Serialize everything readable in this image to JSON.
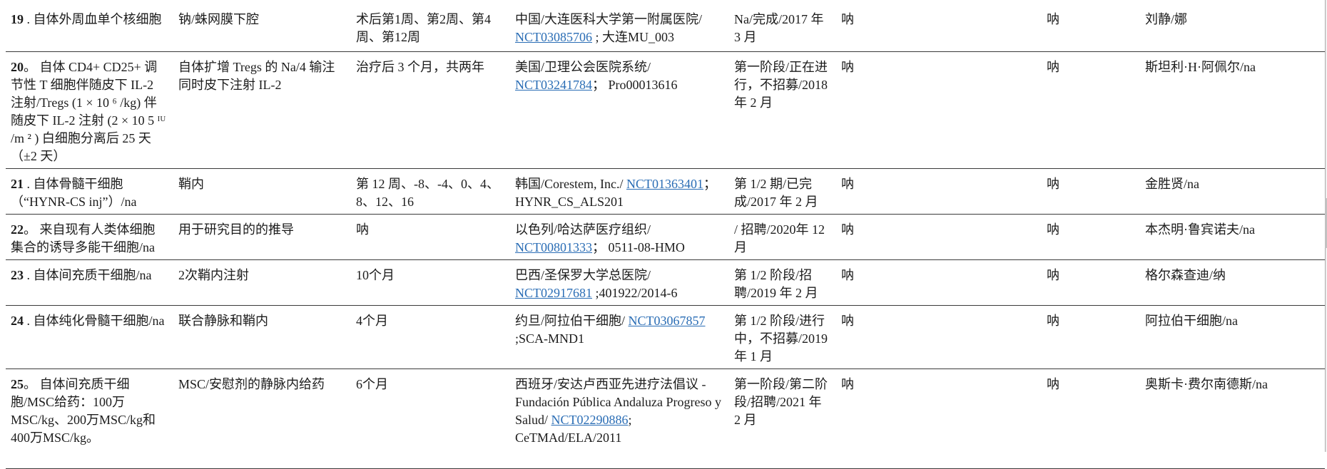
{
  "colors": {
    "link": "#2a6db5",
    "text": "#1c1c1c",
    "row_border": "#3a3a3a"
  },
  "table": {
    "rows": [
      {
        "cells": [
          {
            "num": "19",
            "rest": " . 自体外周血单个核细胞"
          },
          {
            "text": "钠/蛛网膜下腔"
          },
          {
            "text": "术后第1周、第2周、第4周、第12周"
          },
          {
            "segments": [
              {
                "text": "中国/大连医科大学第一附属医院/ "
              },
              {
                "link": "NCT03085706"
              },
              {
                "text": " ; 大连MU_003"
              }
            ]
          },
          {
            "text": "Na/完成/2017 年 3 月"
          },
          {
            "text": "呐"
          },
          {
            "text": "呐"
          },
          {
            "text": "刘静/娜"
          }
        ]
      },
      {
        "cells": [
          {
            "num": "20",
            "rest": "。 自体 CD4+ CD25+ 调节性 T 细胞伴随皮下 IL-2 注射/Tregs (1 × 10 ⁶ /kg) 伴随皮下 IL-2 注射 (2 × 10 5 ᴵᵁ /m ² ) 白细胞分离后 25 天（±2 天）"
          },
          {
            "text": "自体扩增 Tregs 的 Na/4 输注同时皮下注射 IL-2"
          },
          {
            "text": "治疗后 3 个月，共两年"
          },
          {
            "segments": [
              {
                "text": "美国/卫理公会医院系统/ "
              },
              {
                "link": "NCT03241784"
              },
              {
                "text": "； Pro00013616"
              }
            ]
          },
          {
            "text": "第一阶段/正在进行，不招募/2018 年 2 月"
          },
          {
            "text": "呐"
          },
          {
            "text": "呐"
          },
          {
            "text": "斯坦利·H·阿佩尔/na"
          }
        ]
      },
      {
        "cells": [
          {
            "num": "21",
            "rest": " . 自体骨髓干细胞（“HYNR-CS inj”）/na"
          },
          {
            "text": "鞘内"
          },
          {
            "text": "第 12 周、-8、-4、0、4、8、12、16"
          },
          {
            "segments": [
              {
                "text": "韩国/Corestem, Inc./ "
              },
              {
                "link": "NCT01363401"
              },
              {
                "text": "； HYNR_CS_ALS201"
              }
            ]
          },
          {
            "text": "第 1/2 期/已完成/2017 年 2 月"
          },
          {
            "text": "呐"
          },
          {
            "text": "呐"
          },
          {
            "text": "金胜贤/na"
          }
        ]
      },
      {
        "cells": [
          {
            "num": "22",
            "rest": "。 来自现有人类体细胞集合的诱导多能干细胞/na"
          },
          {
            "text": "用于研究目的的推导"
          },
          {
            "text": "呐"
          },
          {
            "segments": [
              {
                "text": "以色列/哈达萨医疗组织/ "
              },
              {
                "link": "NCT00801333"
              },
              {
                "text": "； 0511-08-HMO"
              }
            ]
          },
          {
            "text": "/ 招聘/2020年 12月"
          },
          {
            "text": "呐"
          },
          {
            "text": "呐"
          },
          {
            "text": "本杰明·鲁宾诺夫/na"
          }
        ]
      },
      {
        "cells": [
          {
            "num": "23",
            "rest": " . 自体间充质干细胞/na"
          },
          {
            "text": "2次鞘内注射"
          },
          {
            "text": "10个月"
          },
          {
            "segments": [
              {
                "text": "巴西/圣保罗大学总医院/ "
              },
              {
                "link": "NCT02917681"
              },
              {
                "text": " ;401922/2014-6"
              }
            ]
          },
          {
            "text": "第 1/2 阶段/招聘/2019 年 2 月"
          },
          {
            "text": "呐"
          },
          {
            "text": "呐"
          },
          {
            "text": "格尔森查迪/纳"
          }
        ]
      },
      {
        "cells": [
          {
            "num": "24",
            "rest": " . 自体纯化骨髓干细胞/na"
          },
          {
            "text": "联合静脉和鞘内"
          },
          {
            "text": "4个月"
          },
          {
            "segments": [
              {
                "text": "约旦/阿拉伯干细胞/ "
              },
              {
                "link": "NCT03067857"
              },
              {
                "text": " ;SCA-MND1"
              }
            ]
          },
          {
            "text": "第 1/2 阶段/进行中，不招募/2019 年 1 月"
          },
          {
            "text": "呐"
          },
          {
            "text": "呐"
          },
          {
            "text": "阿拉伯干细胞/na"
          }
        ]
      },
      {
        "cells": [
          {
            "num": "25",
            "rest": "。 自体间充质干细胞/MSC给药：100万MSC/kg、200万MSC/kg和400万MSC/kg。"
          },
          {
            "text": "MSC/安慰剂的静脉内给药"
          },
          {
            "text": "6个月"
          },
          {
            "segments": [
              {
                "text": "西班牙/安达卢西亚先进疗法倡议 - Fundación Pública Andaluza Progreso y Salud/ "
              },
              {
                "link": "NCT02290886"
              },
              {
                "text": "; CeTMAd/ELA/2011"
              }
            ]
          },
          {
            "text": "第一阶段/第二阶段/招聘/2021 年 2 月"
          },
          {
            "text": "呐"
          },
          {
            "text": "呐"
          },
          {
            "text": "奥斯卡·费尔南德斯/na"
          }
        ]
      }
    ]
  }
}
